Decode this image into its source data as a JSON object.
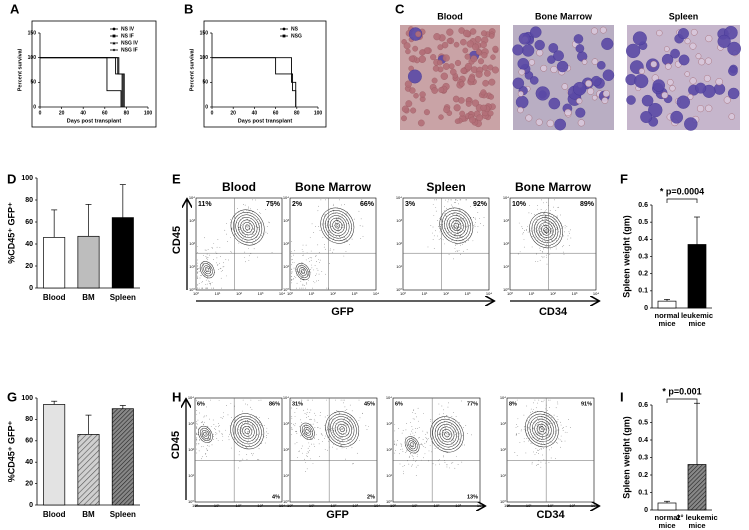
{
  "panel_letters": [
    "A",
    "B",
    "C",
    "D",
    "E",
    "F",
    "G",
    "H",
    "I"
  ],
  "chart_data": [
    {
      "type": "line",
      "y_label": "Percent survival",
      "x_label": "Days post transplant",
      "xlim": [
        0,
        100
      ],
      "xticks": [
        0,
        20,
        40,
        60,
        80,
        100
      ],
      "ylim": [
        0,
        150
      ],
      "yticks": [
        0,
        50,
        100,
        150
      ],
      "series": [
        {
          "name": "NS IV",
          "color": "#000000",
          "marker": "circle",
          "x": [
            0,
            70,
            70,
            76,
            76
          ],
          "values": [
            100,
            100,
            67,
            67,
            0
          ]
        },
        {
          "name": "NS IF",
          "color": "#000000",
          "marker": "square",
          "x": [
            0,
            73,
            73,
            78,
            78
          ],
          "values": [
            100,
            100,
            67,
            67,
            0
          ]
        },
        {
          "name": "NSG IV",
          "color": "#000000",
          "marker": "triangle",
          "x": [
            0,
            62,
            62,
            75,
            75
          ],
          "values": [
            100,
            100,
            33,
            33,
            0
          ]
        },
        {
          "name": "NSG IF",
          "color": "#000000",
          "marker": "diamond",
          "x": [
            0,
            72,
            72,
            77,
            77
          ],
          "values": [
            100,
            100,
            67,
            67,
            0
          ]
        }
      ]
    },
    {
      "type": "line",
      "y_label": "Percent survival",
      "x_label": "Days post transplant",
      "xlim": [
        0,
        100
      ],
      "xticks": [
        0,
        20,
        40,
        60,
        80,
        100
      ],
      "ylim": [
        0,
        150
      ],
      "yticks": [
        0,
        50,
        100,
        150
      ],
      "series": [
        {
          "name": "NS",
          "color": "#000000",
          "marker": "circle",
          "x": [
            0,
            75,
            75,
            79,
            79
          ],
          "values": [
            100,
            100,
            50,
            50,
            0
          ]
        },
        {
          "name": "NSG",
          "color": "#000000",
          "marker": "square",
          "x": [
            0,
            60,
            60,
            76,
            76,
            79,
            79
          ],
          "values": [
            100,
            100,
            67,
            67,
            33,
            33,
            0
          ]
        }
      ]
    },
    {
      "type": "bar",
      "y_label": "%CD45⁺ GFP⁺",
      "categories": [
        "Blood",
        "BM",
        "Spleen"
      ],
      "values": [
        46,
        47,
        64
      ],
      "errors": [
        25,
        29,
        30
      ],
      "colors": [
        "#ffffff",
        "#bdbdbd",
        "#000000"
      ],
      "ylim": [
        0,
        100
      ],
      "yticks": [
        0,
        20,
        40,
        60,
        80,
        100
      ]
    },
    {
      "type": "bar",
      "y_label": "Spleen weight (gm)",
      "categories": [
        "normal mice",
        "leukemic mice"
      ],
      "values": [
        0.04,
        0.37
      ],
      "errors": [
        0.01,
        0.16
      ],
      "colors": [
        "#ffffff",
        "#000000"
      ],
      "ylim": [
        0,
        0.6
      ],
      "yticks": [
        0,
        0.1,
        0.2,
        0.3,
        0.4,
        0.5,
        0.6
      ],
      "annotation": "* p=0.0004"
    },
    {
      "type": "bar",
      "y_label": "%CD45⁺ GFP⁺",
      "categories": [
        "Blood",
        "BM",
        "Spleen"
      ],
      "values": [
        94,
        66,
        90
      ],
      "errors": [
        3,
        18,
        3
      ],
      "colors": [
        "#e3e3e3",
        "url(#hatch)",
        "url(#hatch2)"
      ],
      "ylim": [
        0,
        100
      ],
      "yticks": [
        0,
        20,
        40,
        60,
        80,
        100
      ]
    },
    {
      "type": "bar",
      "y_label": "Spleen weight (gm)",
      "categories": [
        "normal mice",
        "2° leukemic mice"
      ],
      "values": [
        0.04,
        0.26
      ],
      "errors": [
        0.01,
        0.35
      ],
      "colors": [
        "#ffffff",
        "url(#hatch2)"
      ],
      "ylim": [
        0,
        0.6
      ],
      "yticks": [
        0,
        0.1,
        0.2,
        0.3,
        0.4,
        0.5,
        0.6
      ],
      "annotation": "* p=0.001"
    }
  ],
  "micrographs": {
    "titles": [
      "Blood",
      "Bone Marrow",
      "Spleen"
    ]
  },
  "flow": {
    "tick_labels": [
      "10⁰",
      "10¹",
      "10²",
      "10³",
      "10⁴"
    ],
    "E": {
      "y_label": "CD45",
      "x_labels": [
        "GFP",
        "CD34"
      ],
      "plots": [
        {
          "title": "Blood",
          "labels": [
            "11%",
            "75%"
          ]
        },
        {
          "title": "Bone Marrow",
          "labels": [
            "2%",
            "66%"
          ]
        },
        {
          "title": "Spleen",
          "labels": [
            "3%",
            "92%"
          ]
        },
        {
          "title": "Bone Marrow",
          "labels": [
            "10%",
            "89%"
          ]
        }
      ]
    },
    "H": {
      "y_label": "CD45",
      "x_labels": [
        "GFP",
        "CD34"
      ],
      "plots": [
        {
          "labels": [
            "6%",
            "86%",
            "4%"
          ]
        },
        {
          "labels": [
            "31%",
            "45%",
            "2%"
          ]
        },
        {
          "labels": [
            "6%",
            "77%",
            "13%"
          ]
        },
        {
          "labels": [
            "8%",
            "91%"
          ]
        }
      ]
    }
  }
}
